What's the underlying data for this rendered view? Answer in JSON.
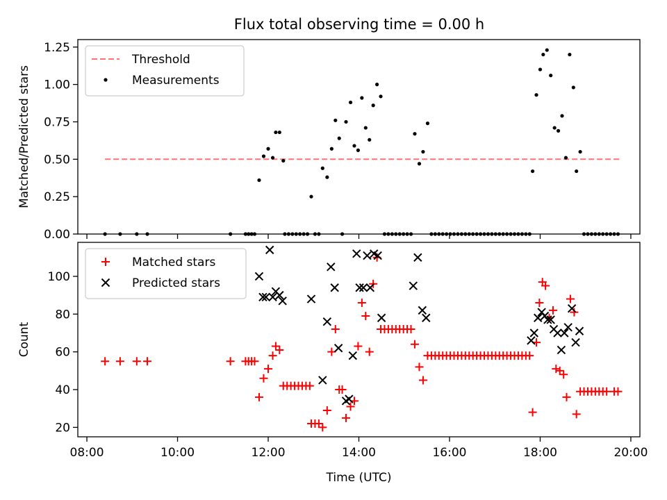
{
  "title": "Flux total observing time = 0.00 h",
  "chart_data": [
    {
      "type": "scatter",
      "panel": "top",
      "ylabel": "Matched/Predicted stars",
      "xlabel": "",
      "xlim": [
        "07:48",
        "20:12"
      ],
      "ylim": [
        0,
        1.3
      ],
      "yticks": [
        0.0,
        0.25,
        0.5,
        0.75,
        1.0,
        1.25
      ],
      "ytick_labels": [
        "0.00",
        "0.25",
        "0.50",
        "0.75",
        "1.00",
        "1.25"
      ],
      "legend_placement": "top-left",
      "threshold": {
        "name": "Threshold",
        "value": 0.5,
        "x_start": "08:24",
        "x_end": "19:48",
        "color": "#ff7070"
      },
      "series": [
        {
          "name": "Measurements",
          "color": "#000000",
          "marker": "dot",
          "points": [
            [
              "08:24",
              0
            ],
            [
              "08:44",
              0
            ],
            [
              "09:06",
              0
            ],
            [
              "09:20",
              0
            ],
            [
              "11:10",
              0
            ],
            [
              "11:30",
              0
            ],
            [
              "11:34",
              0
            ],
            [
              "11:38",
              0
            ],
            [
              "11:42",
              0
            ],
            [
              "11:48",
              0.36
            ],
            [
              "11:54",
              0.52
            ],
            [
              "12:00",
              0.57
            ],
            [
              "12:06",
              0.51
            ],
            [
              "12:10",
              0.68
            ],
            [
              "12:15",
              0.68
            ],
            [
              "12:20",
              0.49
            ],
            [
              "12:22",
              0
            ],
            [
              "12:27",
              0
            ],
            [
              "12:32",
              0
            ],
            [
              "12:37",
              0
            ],
            [
              "12:42",
              0
            ],
            [
              "12:47",
              0
            ],
            [
              "12:52",
              0
            ],
            [
              "12:57",
              0.25
            ],
            [
              "13:02",
              0
            ],
            [
              "13:07",
              0
            ],
            [
              "13:12",
              0.44
            ],
            [
              "13:18",
              0.38
            ],
            [
              "13:24",
              0.57
            ],
            [
              "13:29",
              0.76
            ],
            [
              "13:34",
              0.64
            ],
            [
              "13:38",
              0
            ],
            [
              "13:43",
              0.75
            ],
            [
              "13:49",
              0.88
            ],
            [
              "13:54",
              0.59
            ],
            [
              "13:59",
              0.56
            ],
            [
              "14:04",
              0.91
            ],
            [
              "14:09",
              0.71
            ],
            [
              "14:14",
              0.63
            ],
            [
              "14:19",
              0.86
            ],
            [
              "14:24",
              1.0
            ],
            [
              "14:29",
              0.92
            ],
            [
              "14:34",
              0
            ],
            [
              "14:39",
              0
            ],
            [
              "14:44",
              0
            ],
            [
              "14:49",
              0
            ],
            [
              "14:54",
              0
            ],
            [
              "14:59",
              0
            ],
            [
              "15:04",
              0
            ],
            [
              "15:09",
              0
            ],
            [
              "15:14",
              0.67
            ],
            [
              "15:20",
              0.47
            ],
            [
              "15:25",
              0.55
            ],
            [
              "15:31",
              0.74
            ],
            [
              "15:36",
              0
            ],
            [
              "15:41",
              0
            ],
            [
              "15:46",
              0
            ],
            [
              "15:51",
              0
            ],
            [
              "15:56",
              0
            ],
            [
              "16:01",
              0
            ],
            [
              "16:06",
              0
            ],
            [
              "16:11",
              0
            ],
            [
              "16:16",
              0
            ],
            [
              "16:21",
              0
            ],
            [
              "16:26",
              0
            ],
            [
              "16:31",
              0
            ],
            [
              "16:36",
              0
            ],
            [
              "16:41",
              0
            ],
            [
              "16:46",
              0
            ],
            [
              "16:51",
              0
            ],
            [
              "16:56",
              0
            ],
            [
              "17:01",
              0
            ],
            [
              "17:06",
              0
            ],
            [
              "17:11",
              0
            ],
            [
              "17:16",
              0
            ],
            [
              "17:21",
              0
            ],
            [
              "17:26",
              0
            ],
            [
              "17:31",
              0
            ],
            [
              "17:36",
              0
            ],
            [
              "17:41",
              0
            ],
            [
              "17:46",
              0
            ],
            [
              "17:50",
              0.42
            ],
            [
              "17:55",
              0.93
            ],
            [
              "18:00",
              1.1
            ],
            [
              "18:04",
              1.2
            ],
            [
              "18:09",
              1.23
            ],
            [
              "18:14",
              1.06
            ],
            [
              "18:19",
              0.71
            ],
            [
              "18:24",
              0.69
            ],
            [
              "18:29",
              0.79
            ],
            [
              "18:34",
              0.51
            ],
            [
              "18:39",
              1.2
            ],
            [
              "18:44",
              0.98
            ],
            [
              "18:48",
              0.42
            ],
            [
              "18:53",
              0.55
            ],
            [
              "18:58",
              0
            ],
            [
              "19:03",
              0
            ],
            [
              "19:08",
              0
            ],
            [
              "19:13",
              0
            ],
            [
              "19:18",
              0
            ],
            [
              "19:23",
              0
            ],
            [
              "19:28",
              0
            ],
            [
              "19:33",
              0
            ],
            [
              "19:38",
              0
            ],
            [
              "19:43",
              0
            ]
          ]
        }
      ]
    },
    {
      "type": "scatter",
      "panel": "bottom",
      "xlabel": "Time (UTC)",
      "ylabel": "Count",
      "xlim": [
        "07:48",
        "20:12"
      ],
      "ylim": [
        15,
        118
      ],
      "xticks": [
        "08:00",
        "10:00",
        "12:00",
        "14:00",
        "16:00",
        "18:00",
        "20:00"
      ],
      "yticks": [
        20,
        40,
        60,
        80,
        100
      ],
      "ytick_labels": [
        "20",
        "40",
        "60",
        "80",
        "100"
      ],
      "legend_placement": "top-left",
      "series": [
        {
          "name": "Matched stars",
          "color": "#ff0000",
          "marker": "plus",
          "points": [
            [
              "08:24",
              55
            ],
            [
              "08:44",
              55
            ],
            [
              "09:06",
              55
            ],
            [
              "09:20",
              55
            ],
            [
              "11:10",
              55
            ],
            [
              "11:30",
              55
            ],
            [
              "11:34",
              55
            ],
            [
              "11:38",
              55
            ],
            [
              "11:42",
              55
            ],
            [
              "11:48",
              36
            ],
            [
              "11:54",
              46
            ],
            [
              "12:00",
              51
            ],
            [
              "12:06",
              58
            ],
            [
              "12:10",
              63
            ],
            [
              "12:15",
              61
            ],
            [
              "12:20",
              42
            ],
            [
              "12:25",
              42
            ],
            [
              "12:30",
              42
            ],
            [
              "12:35",
              42
            ],
            [
              "12:40",
              42
            ],
            [
              "12:45",
              42
            ],
            [
              "12:50",
              42
            ],
            [
              "12:55",
              42
            ],
            [
              "12:57",
              22
            ],
            [
              "13:02",
              22
            ],
            [
              "13:07",
              22
            ],
            [
              "13:12",
              20
            ],
            [
              "13:18",
              29
            ],
            [
              "13:24",
              60
            ],
            [
              "13:29",
              72
            ],
            [
              "13:34",
              40
            ],
            [
              "13:38",
              40
            ],
            [
              "13:43",
              25
            ],
            [
              "13:49",
              31
            ],
            [
              "13:54",
              34
            ],
            [
              "13:59",
              63
            ],
            [
              "14:04",
              86
            ],
            [
              "14:09",
              79
            ],
            [
              "14:14",
              60
            ],
            [
              "14:19",
              96
            ],
            [
              "14:24",
              110
            ],
            [
              "14:29",
              72
            ],
            [
              "14:34",
              72
            ],
            [
              "14:39",
              72
            ],
            [
              "14:44",
              72
            ],
            [
              "14:49",
              72
            ],
            [
              "14:54",
              72
            ],
            [
              "14:59",
              72
            ],
            [
              "15:04",
              72
            ],
            [
              "15:09",
              72
            ],
            [
              "15:14",
              64
            ],
            [
              "15:20",
              52
            ],
            [
              "15:25",
              45
            ],
            [
              "15:31",
              58
            ],
            [
              "15:36",
              58
            ],
            [
              "15:41",
              58
            ],
            [
              "15:46",
              58
            ],
            [
              "15:51",
              58
            ],
            [
              "15:56",
              58
            ],
            [
              "16:01",
              58
            ],
            [
              "16:06",
              58
            ],
            [
              "16:11",
              58
            ],
            [
              "16:16",
              58
            ],
            [
              "16:21",
              58
            ],
            [
              "16:26",
              58
            ],
            [
              "16:31",
              58
            ],
            [
              "16:36",
              58
            ],
            [
              "16:41",
              58
            ],
            [
              "16:46",
              58
            ],
            [
              "16:51",
              58
            ],
            [
              "16:56",
              58
            ],
            [
              "17:01",
              58
            ],
            [
              "17:06",
              58
            ],
            [
              "17:11",
              58
            ],
            [
              "17:16",
              58
            ],
            [
              "17:21",
              58
            ],
            [
              "17:26",
              58
            ],
            [
              "17:31",
              58
            ],
            [
              "17:36",
              58
            ],
            [
              "17:41",
              58
            ],
            [
              "17:46",
              58
            ],
            [
              "17:50",
              28
            ],
            [
              "17:55",
              65
            ],
            [
              "17:59",
              86
            ],
            [
              "18:03",
              97
            ],
            [
              "18:07",
              95
            ],
            [
              "18:12",
              78
            ],
            [
              "18:17",
              82
            ],
            [
              "18:21",
              51
            ],
            [
              "18:26",
              50
            ],
            [
              "18:31",
              48
            ],
            [
              "18:35",
              36
            ],
            [
              "18:40",
              88
            ],
            [
              "18:45",
              81
            ],
            [
              "18:48",
              27
            ],
            [
              "18:53",
              39
            ],
            [
              "18:58",
              39
            ],
            [
              "19:03",
              39
            ],
            [
              "19:08",
              39
            ],
            [
              "19:13",
              39
            ],
            [
              "19:18",
              39
            ],
            [
              "19:23",
              39
            ],
            [
              "19:28",
              39
            ],
            [
              "19:38",
              39
            ],
            [
              "19:43",
              39
            ]
          ]
        },
        {
          "name": "Predicted stars",
          "color": "#000000",
          "marker": "x",
          "points": [
            [
              "11:48",
              100
            ],
            [
              "11:53",
              89
            ],
            [
              "11:57",
              89
            ],
            [
              "12:02",
              114
            ],
            [
              "12:06",
              89
            ],
            [
              "12:10",
              92
            ],
            [
              "12:15",
              90
            ],
            [
              "12:19",
              87
            ],
            [
              "12:57",
              88
            ],
            [
              "13:12",
              45
            ],
            [
              "13:18",
              76
            ],
            [
              "13:23",
              105
            ],
            [
              "13:28",
              94
            ],
            [
              "13:33",
              62
            ],
            [
              "13:43",
              34
            ],
            [
              "13:47",
              35
            ],
            [
              "13:52",
              58
            ],
            [
              "13:57",
              112
            ],
            [
              "14:01",
              94
            ],
            [
              "14:06",
              94
            ],
            [
              "14:11",
              111
            ],
            [
              "14:15",
              94
            ],
            [
              "14:20",
              112
            ],
            [
              "14:25",
              111
            ],
            [
              "14:30",
              78
            ],
            [
              "15:12",
              95
            ],
            [
              "15:18",
              110
            ],
            [
              "15:24",
              82
            ],
            [
              "15:29",
              78
            ],
            [
              "17:48",
              66
            ],
            [
              "17:52",
              70
            ],
            [
              "17:57",
              78
            ],
            [
              "18:02",
              81
            ],
            [
              "18:06",
              79
            ],
            [
              "18:10",
              77
            ],
            [
              "18:14",
              77
            ],
            [
              "18:18",
              72
            ],
            [
              "18:23",
              70
            ],
            [
              "18:28",
              61
            ],
            [
              "18:32",
              70
            ],
            [
              "18:37",
              73
            ],
            [
              "18:42",
              83
            ],
            [
              "18:47",
              65
            ],
            [
              "18:52",
              71
            ]
          ]
        }
      ]
    }
  ]
}
